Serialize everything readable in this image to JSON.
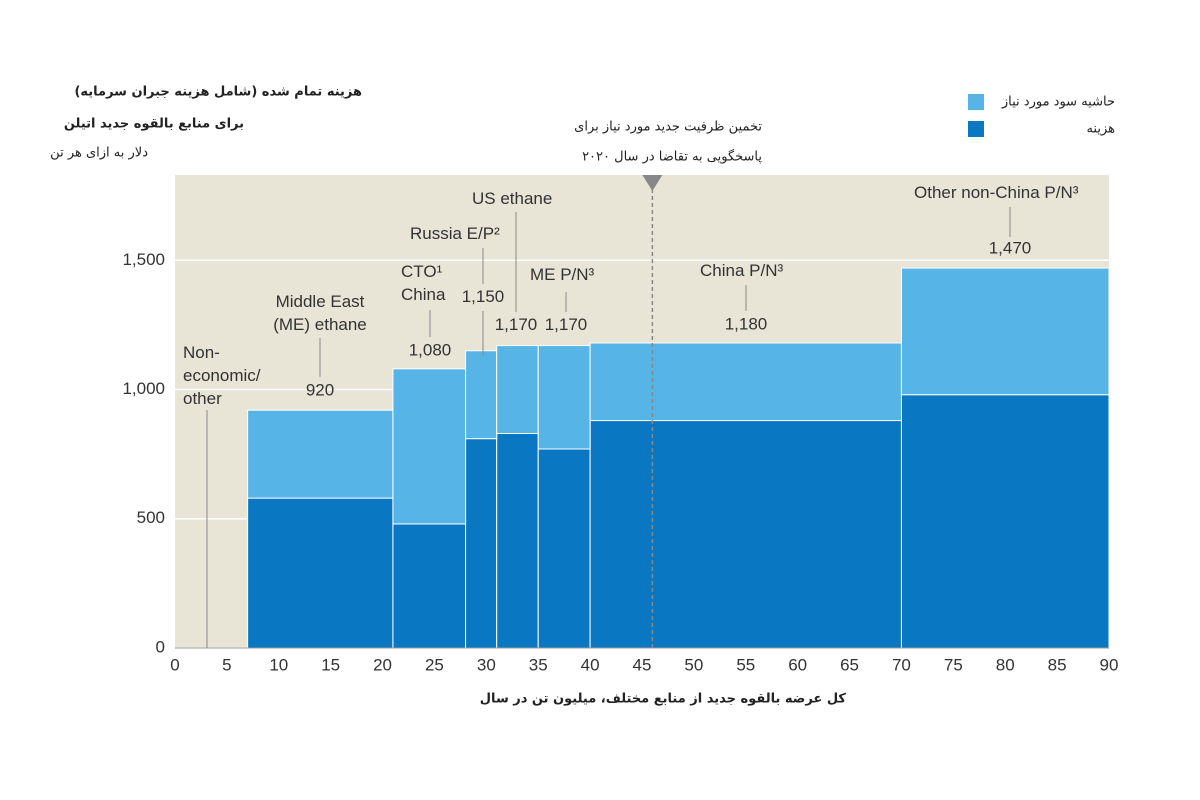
{
  "chart_data": {
    "type": "variable_width_bar",
    "title": "هزینه تمام شده (شامل هزینه جبران سرمایه)",
    "subtitle": "برای منابع بالقوه جدید اتیلن",
    "y_label": "دلار به ازای هر تن",
    "x_label": "کل عرضه بالقوه جدید از منابع مختلف، میلیون تن در سال",
    "categories": [
      "Non-economic/ other",
      "Middle East (ME) ethane",
      "CTO¹ China",
      "Russia E/P²",
      "US ethane",
      "ME P/N³",
      "China P/N³",
      "Other non-China P/N³"
    ],
    "x_edges": [
      0,
      7,
      21,
      28,
      31,
      35,
      40,
      70,
      90
    ],
    "series": [
      {
        "name": "هزینه",
        "color": "#0a77c2",
        "values": [
          null,
          580,
          480,
          810,
          830,
          770,
          880,
          980
        ]
      },
      {
        "name": "حاشیه سود مورد نیاز",
        "color": "#56b4e6",
        "values": [
          null,
          340,
          600,
          340,
          340,
          400,
          300,
          490
        ]
      }
    ],
    "totals": {
      "values": [
        null,
        920,
        1080,
        1150,
        1170,
        1170,
        1180,
        1470
      ],
      "value_labels": [
        null,
        "920",
        "1,080",
        "1,150",
        "1,170",
        "1,170",
        "1,180",
        "1,470"
      ]
    },
    "xlim": [
      0,
      90
    ],
    "xticks": [
      0,
      5,
      10,
      15,
      20,
      25,
      30,
      35,
      40,
      45,
      50,
      55,
      60,
      65,
      70,
      75,
      80,
      85,
      90
    ],
    "ylim": [
      0,
      1830
    ],
    "yticks": [
      0,
      500,
      {
        "value": 1000,
        "label": "1,000"
      },
      {
        "value": 1500,
        "label": "1,500"
      }
    ],
    "grid": true,
    "legend": "top-right",
    "annotation": {
      "x": 46,
      "label_lines": [
        "تخمین ظرفیت جدید مورد نیاز برای",
        "پاسخگویی به تقاضا در سال ۲۰۲۰"
      ]
    }
  }
}
